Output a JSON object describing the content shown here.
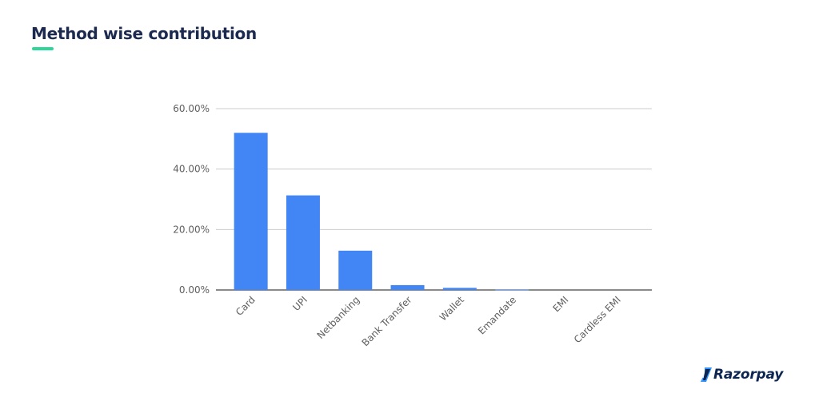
{
  "header": {
    "title": "Method wise contribution",
    "accent_color": "#2fd69a"
  },
  "brand": {
    "name": "Razorpay",
    "icon": "razorpay-logo-icon",
    "icon_color": "#3395ff",
    "text_color": "#0c2651"
  },
  "chart_data": {
    "type": "bar",
    "categories": [
      "Card",
      "UPI",
      "Netbanking",
      "Bank Transfer",
      "Wallet",
      "Emandate",
      "EMI",
      "Cardless EMI"
    ],
    "values": [
      52.0,
      31.3,
      13.0,
      1.6,
      0.7,
      0.1,
      0.0,
      0.0
    ],
    "yticks": [
      "0.00%",
      "20.00%",
      "40.00%",
      "60.00%"
    ],
    "ylim": [
      0,
      60
    ],
    "grid": true,
    "bar_color": "#4285f4",
    "title": "",
    "xlabel": "",
    "ylabel": ""
  }
}
